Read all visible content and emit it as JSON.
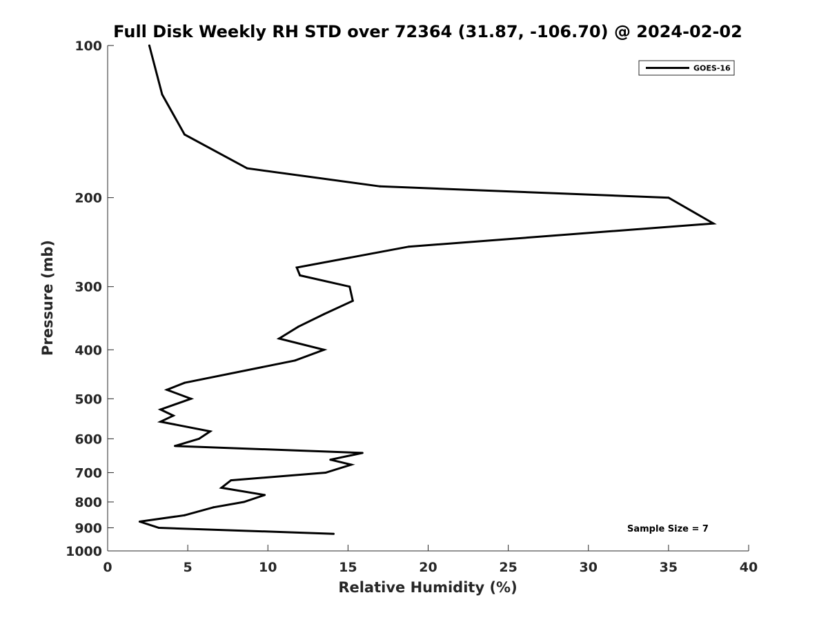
{
  "chart_data": {
    "type": "line",
    "title": "Full Disk Weekly RH STD over 72364 (31.87, -106.70) @ 2024-02-02",
    "xlabel": "Relative Humidity (%)",
    "ylabel": "Pressure (mb)",
    "xlim": [
      0,
      40
    ],
    "ylim": [
      100,
      1000
    ],
    "y_scale": "log",
    "y_reversed": true,
    "x_ticks": [
      "0",
      "5",
      "10",
      "15",
      "20",
      "25",
      "30",
      "35",
      "40"
    ],
    "y_ticks": [
      "100",
      "200",
      "300",
      "400",
      "500",
      "600",
      "700",
      "800",
      "900",
      "1000"
    ],
    "grid": false,
    "legend_position": "top-right",
    "series": [
      {
        "name": "GOES-16",
        "color": "#000000",
        "points": [
          {
            "x": 2.6,
            "p": 100
          },
          {
            "x": 3.4,
            "p": 125
          },
          {
            "x": 4.8,
            "p": 150
          },
          {
            "x": 8.7,
            "p": 175
          },
          {
            "x": 17.0,
            "p": 190
          },
          {
            "x": 35.0,
            "p": 200
          },
          {
            "x": 37.8,
            "p": 225
          },
          {
            "x": 18.8,
            "p": 250
          },
          {
            "x": 11.8,
            "p": 275
          },
          {
            "x": 12.0,
            "p": 285
          },
          {
            "x": 15.1,
            "p": 300
          },
          {
            "x": 15.3,
            "p": 320
          },
          {
            "x": 13.5,
            "p": 340
          },
          {
            "x": 11.9,
            "p": 360
          },
          {
            "x": 10.7,
            "p": 380
          },
          {
            "x": 13.5,
            "p": 400
          },
          {
            "x": 11.7,
            "p": 420
          },
          {
            "x": 4.8,
            "p": 465
          },
          {
            "x": 3.7,
            "p": 480
          },
          {
            "x": 5.2,
            "p": 500
          },
          {
            "x": 3.3,
            "p": 525
          },
          {
            "x": 4.1,
            "p": 540
          },
          {
            "x": 3.3,
            "p": 555
          },
          {
            "x": 6.4,
            "p": 580
          },
          {
            "x": 5.7,
            "p": 600
          },
          {
            "x": 4.2,
            "p": 620
          },
          {
            "x": 15.9,
            "p": 640
          },
          {
            "x": 13.9,
            "p": 660
          },
          {
            "x": 15.2,
            "p": 675
          },
          {
            "x": 13.6,
            "p": 700
          },
          {
            "x": 7.7,
            "p": 725
          },
          {
            "x": 7.1,
            "p": 750
          },
          {
            "x": 9.8,
            "p": 775
          },
          {
            "x": 8.5,
            "p": 800
          },
          {
            "x": 6.6,
            "p": 820
          },
          {
            "x": 4.8,
            "p": 850
          },
          {
            "x": 2.0,
            "p": 875
          },
          {
            "x": 3.2,
            "p": 900
          },
          {
            "x": 14.1,
            "p": 925
          }
        ]
      }
    ],
    "annotation": "Sample Size = 7"
  }
}
